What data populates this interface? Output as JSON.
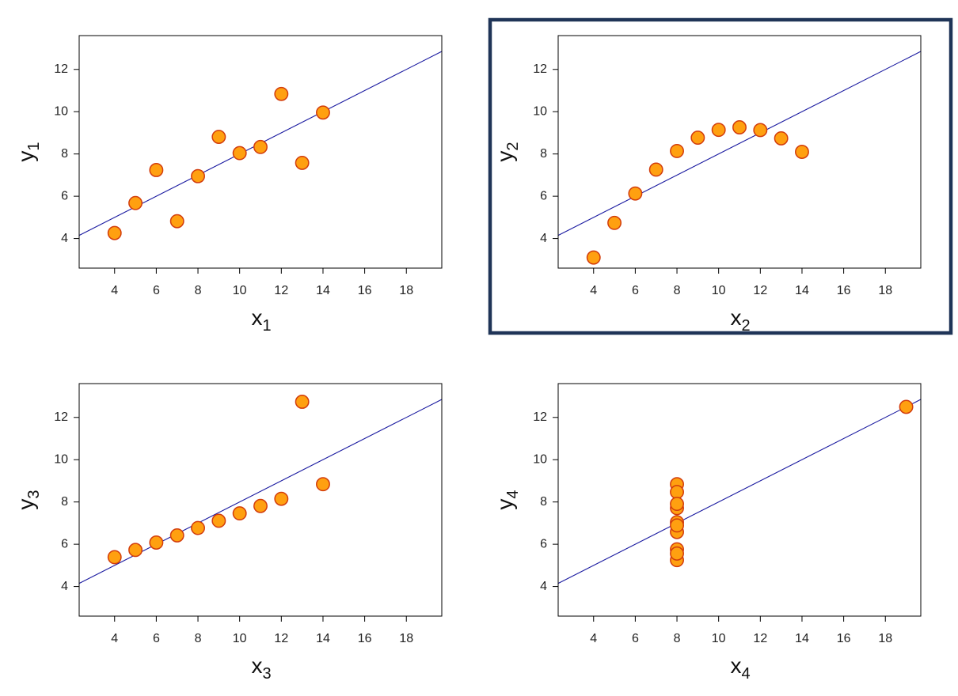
{
  "chart_data": [
    {
      "type": "scatter",
      "xlabel": "x",
      "xlabel_sub": "1",
      "ylabel": "y",
      "ylabel_sub": "1",
      "x": [
        10,
        8,
        13,
        9,
        11,
        14,
        6,
        4,
        12,
        7,
        5
      ],
      "y": [
        8.04,
        6.95,
        7.58,
        8.81,
        8.33,
        9.96,
        7.24,
        4.26,
        10.84,
        4.82,
        5.68
      ],
      "fit_line": {
        "intercept": 3.0,
        "slope": 0.5
      },
      "xlim": [
        2.3,
        19.7
      ],
      "ylim": [
        2.6,
        13.6
      ],
      "xticks": [
        4,
        6,
        8,
        10,
        12,
        14,
        16,
        18
      ],
      "yticks": [
        4,
        6,
        8,
        10,
        12
      ],
      "highlighted": false
    },
    {
      "type": "scatter",
      "xlabel": "x",
      "xlabel_sub": "2",
      "ylabel": "y",
      "ylabel_sub": "2",
      "x": [
        10,
        8,
        13,
        9,
        11,
        14,
        6,
        4,
        12,
        7,
        5
      ],
      "y": [
        9.14,
        8.14,
        8.74,
        8.77,
        9.26,
        8.1,
        6.13,
        3.1,
        9.13,
        7.26,
        4.74
      ],
      "fit_line": {
        "intercept": 3.0,
        "slope": 0.5
      },
      "xlim": [
        2.3,
        19.7
      ],
      "ylim": [
        2.6,
        13.6
      ],
      "xticks": [
        4,
        6,
        8,
        10,
        12,
        14,
        16,
        18
      ],
      "yticks": [
        4,
        6,
        8,
        10,
        12
      ],
      "highlighted": true
    },
    {
      "type": "scatter",
      "xlabel": "x",
      "xlabel_sub": "3",
      "ylabel": "y",
      "ylabel_sub": "3",
      "x": [
        10,
        8,
        13,
        9,
        11,
        14,
        6,
        4,
        12,
        7,
        5
      ],
      "y": [
        7.46,
        6.77,
        12.74,
        7.11,
        7.81,
        8.84,
        6.08,
        5.39,
        8.15,
        6.42,
        5.73
      ],
      "fit_line": {
        "intercept": 3.0,
        "slope": 0.5
      },
      "xlim": [
        2.3,
        19.7
      ],
      "ylim": [
        2.6,
        13.6
      ],
      "xticks": [
        4,
        6,
        8,
        10,
        12,
        14,
        16,
        18
      ],
      "yticks": [
        4,
        6,
        8,
        10,
        12
      ],
      "highlighted": false
    },
    {
      "type": "scatter",
      "xlabel": "x",
      "xlabel_sub": "4",
      "ylabel": "y",
      "ylabel_sub": "4",
      "x": [
        8,
        8,
        8,
        8,
        8,
        8,
        8,
        19,
        8,
        8,
        8
      ],
      "y": [
        6.58,
        5.76,
        7.71,
        8.84,
        8.47,
        7.04,
        5.25,
        12.5,
        5.56,
        7.91,
        6.89
      ],
      "fit_line": {
        "intercept": 3.0,
        "slope": 0.5
      },
      "xlim": [
        2.3,
        19.7
      ],
      "ylim": [
        2.6,
        13.6
      ],
      "xticks": [
        4,
        6,
        8,
        10,
        12,
        14,
        16,
        18
      ],
      "yticks": [
        4,
        6,
        8,
        10,
        12
      ],
      "highlighted": false
    }
  ],
  "colors": {
    "point_fill": "#ffa010",
    "point_stroke": "#d23c0c",
    "fit_line": "#1a1aa0",
    "highlight_frame": "#1f3457"
  }
}
